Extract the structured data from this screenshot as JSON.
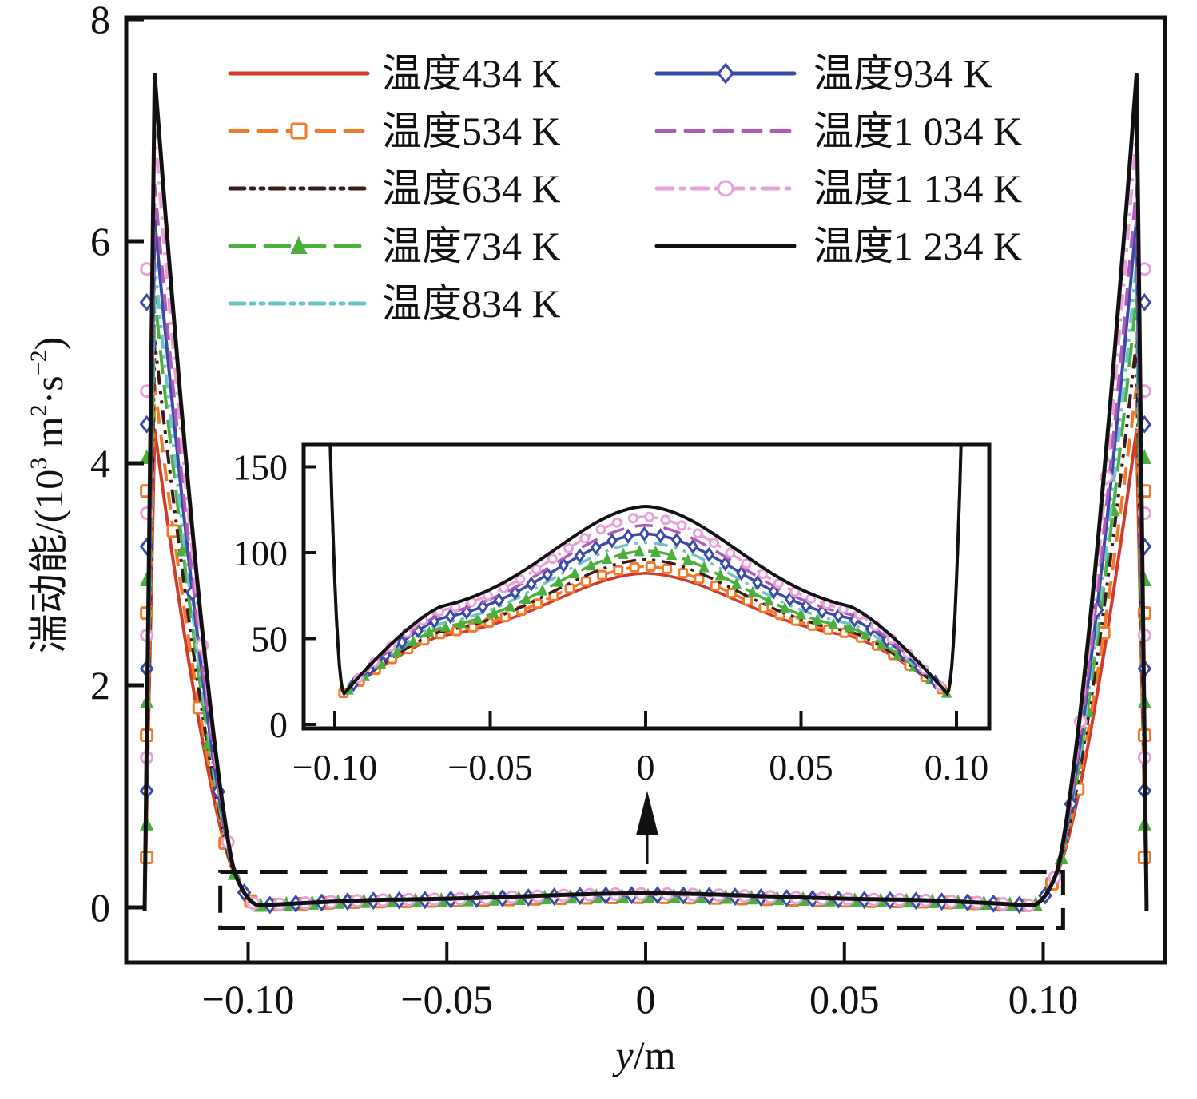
{
  "chart_data": {
    "type": "line",
    "title": "",
    "xlabel": "y/m",
    "xlabel_italic_part": "y",
    "xlabel_rest": "/m",
    "ylabel": "湍动能/(10³ m²·s⁻²)",
    "ylabel_prefix": "湍动能/(10",
    "ylabel_sup1": "3",
    "ylabel_mid": " m",
    "ylabel_sup2": "2",
    "ylabel_mid2": "·s",
    "ylabel_sup3": "−2",
    "ylabel_suffix": ")",
    "xlim": [
      -0.13,
      0.131
    ],
    "ylim": [
      -0.26,
      8
    ],
    "grid": false,
    "legend_position": "top-center (two columns)",
    "x_ticks": [
      -0.1,
      -0.05,
      0,
      0.05,
      0.1
    ],
    "x_tick_labels": [
      "−0.10",
      "−0.05",
      "0",
      "0.05",
      "0.10"
    ],
    "y_ticks": [
      0,
      2,
      4,
      6,
      8
    ],
    "y_tick_labels": [
      "0",
      "2",
      "4",
      "6",
      "8"
    ],
    "series": [
      {
        "name": "温度434 K",
        "color": "#d43a2a",
        "style": "solid",
        "marker": "none",
        "peak": 4.3,
        "center_inset": 88,
        "shoulder": 48
      },
      {
        "name": "温度534 K",
        "color": "#f07a2a",
        "style": "dashed",
        "marker": "square",
        "peak": 4.7,
        "center_inset": 92,
        "shoulder": 49
      },
      {
        "name": "温度634 K",
        "color": "#3a1a1a",
        "style": "dash-dot-dot",
        "marker": "none",
        "peak": 5.1,
        "center_inset": 96,
        "shoulder": 50
      },
      {
        "name": "温度734 K",
        "color": "#4caf3c",
        "style": "long-dash",
        "marker": "triangle",
        "peak": 5.5,
        "center_inset": 101,
        "shoulder": 52
      },
      {
        "name": "温度834 K",
        "color": "#6cc4c8",
        "style": "dash-dot-dot",
        "marker": "none",
        "peak": 5.8,
        "center_inset": 106,
        "shoulder": 54
      },
      {
        "name": "温度934 K",
        "color": "#3a4aa8",
        "style": "solid",
        "marker": "diamond",
        "peak": 6.2,
        "center_inset": 111,
        "shoulder": 57
      },
      {
        "name": "温度1 034 K",
        "color": "#b05ab8",
        "style": "dashed",
        "marker": "none",
        "peak": 6.5,
        "center_inset": 116,
        "shoulder": 59
      },
      {
        "name": "温度1 134 K",
        "color": "#e8a0d8",
        "style": "dash-dot",
        "marker": "circle",
        "peak": 7.0,
        "center_inset": 121,
        "shoulder": 61
      },
      {
        "name": "温度1 234 K",
        "color": "#111111",
        "style": "solid",
        "marker": "none",
        "peak": 7.5,
        "center_inset": 127,
        "shoulder": 63
      }
    ],
    "profile_shape": {
      "wall_position_m": 0.126,
      "peak_position_m": 0.1235,
      "core_edge_m": 0.103,
      "core_value_units": "1e3 m2/s2 (main) / m2/s2 (inset)",
      "inset_min_value": 18,
      "inset_min_position_m": 0.097
    },
    "inset": {
      "xlim": [
        -0.105,
        0.111
      ],
      "ylim": [
        0,
        160
      ],
      "x_ticks": [
        -0.1,
        -0.05,
        0,
        0.05,
        0.1
      ],
      "x_tick_labels": [
        "−0.10",
        "−0.05",
        "0",
        "0.05",
        "0.10"
      ],
      "y_ticks": [
        0,
        50,
        100,
        150
      ],
      "y_tick_labels": [
        "0",
        "50",
        "100",
        "150"
      ]
    },
    "annotations": [
      {
        "type": "dashed-rectangle",
        "label": "zoom region",
        "x_range": [
          -0.107,
          0.105
        ],
        "y_range": [
          -0.19,
          0.32
        ]
      },
      {
        "type": "arrow",
        "from_x": 0,
        "direction": "up",
        "points_to": "inset"
      }
    ]
  }
}
